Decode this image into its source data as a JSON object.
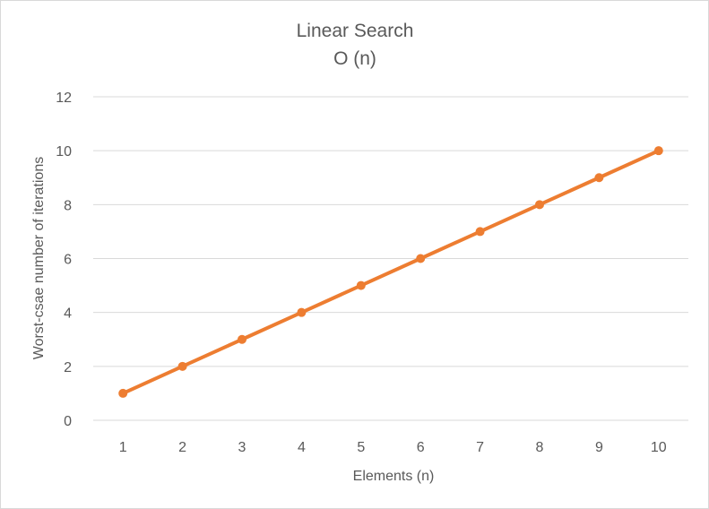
{
  "chart_data": {
    "type": "line",
    "title": "Linear Search",
    "subtitle": "O (n)",
    "xlabel": "Elements (n)",
    "ylabel": "Worst-csae number of iterations",
    "categories": [
      "1",
      "2",
      "3",
      "4",
      "5",
      "6",
      "7",
      "8",
      "9",
      "10"
    ],
    "series": [
      {
        "values": [
          1,
          2,
          3,
          4,
          5,
          6,
          7,
          8,
          9,
          10
        ],
        "color": "#ed7d31"
      }
    ],
    "ylim": [
      0,
      12
    ],
    "yticks": [
      "0",
      "2",
      "4",
      "6",
      "8",
      "10",
      "12"
    ],
    "grid": true,
    "markers": true
  }
}
